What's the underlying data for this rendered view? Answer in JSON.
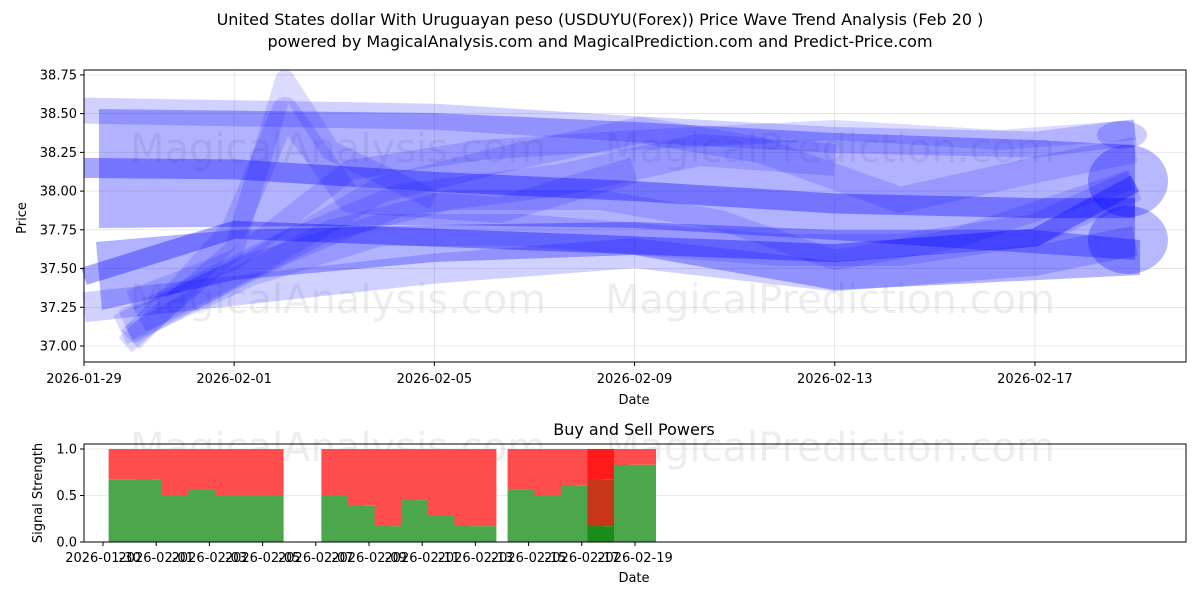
{
  "header": {
    "title": "United States dollar With Uruguayan peso (USDUYU(Forex)) Price Wave Trend Analysis (Feb 20 )",
    "subtitle": "powered by MagicalAnalysis.com and MagicalPrediction.com and Predict-Price.com"
  },
  "watermarks": {
    "left": "MagicalAnalysis.com",
    "right": "MagicalPrediction.com"
  },
  "colors": {
    "band": "#0000ff",
    "buy": "#4ca64c",
    "sell": "#ff4c4c",
    "buy_strong": "#1a8c1a",
    "sell_strong": "#ff1a1a",
    "mixed": "#c8361a"
  },
  "chart_data": [
    {
      "type": "area",
      "title": "United States dollar With Uruguayan peso (USDUYU(Forex)) Price Wave Trend Analysis (Feb 20 )",
      "xlabel": "Date",
      "ylabel": "Price",
      "ylim": [
        36.88,
        38.78
      ],
      "yticks": [
        "37.00",
        "37.25",
        "37.50",
        "37.75",
        "38.00",
        "38.25",
        "38.50",
        "38.75"
      ],
      "xticks": [
        "2026-01-29",
        "2026-02-01",
        "2026-02-05",
        "2026-02-09",
        "2026-02-13",
        "2026-02-17"
      ],
      "grid": true,
      "series": [
        {
          "name": "upper-band",
          "x": [
            "2026-01-29",
            "2026-02-05",
            "2026-02-09",
            "2026-02-13",
            "2026-02-17",
            "2026-02-19"
          ],
          "values": [
            38.52,
            38.48,
            38.4,
            38.33,
            38.3,
            38.38
          ]
        },
        {
          "name": "center-upper",
          "x": [
            "2026-01-29",
            "2026-02-01",
            "2026-02-05",
            "2026-02-09",
            "2026-02-13",
            "2026-02-17",
            "2026-02-19"
          ],
          "values": [
            38.15,
            38.14,
            38.06,
            38.0,
            37.92,
            37.89,
            37.89
          ]
        },
        {
          "name": "center-lower",
          "x": [
            "2026-01-29",
            "2026-02-01",
            "2026-02-05",
            "2026-02-09",
            "2026-02-13",
            "2026-02-17",
            "2026-02-19"
          ],
          "values": [
            37.45,
            37.75,
            37.7,
            37.65,
            37.6,
            37.7,
            38.05
          ]
        },
        {
          "name": "lower-band",
          "x": [
            "2026-01-29",
            "2026-02-05",
            "2026-02-09",
            "2026-02-13",
            "2026-02-17",
            "2026-02-19"
          ],
          "values": [
            37.25,
            37.5,
            37.6,
            37.45,
            37.55,
            37.68
          ]
        },
        {
          "name": "rising-wave",
          "x": [
            "2026-01-30",
            "2026-02-01",
            "2026-02-02",
            "2026-02-05"
          ],
          "values": [
            37.0,
            37.5,
            38.7,
            37.8
          ]
        }
      ]
    },
    {
      "type": "bar",
      "title": "Buy and Sell Powers",
      "xlabel": "Date",
      "ylabel": "Signal Strength",
      "ylim": [
        0,
        1.05
      ],
      "yticks": [
        "0.0",
        "0.5",
        "1.0"
      ],
      "xticks": [
        "2026-01-30",
        "2026-02-01",
        "2026-02-03",
        "2026-02-05",
        "2026-02-07",
        "2026-02-09",
        "2026-02-11",
        "2026-02-13",
        "2026-02-15",
        "2026-02-17",
        "2026-02-19"
      ],
      "stacked": true,
      "categories": [
        "2026-01-31",
        "2026-02-01",
        "2026-02-02",
        "2026-02-03",
        "2026-02-04",
        "2026-02-05",
        "2026-02-08",
        "2026-02-09",
        "2026-02-10",
        "2026-02-11",
        "2026-02-12",
        "2026-02-13",
        "2026-02-15",
        "2026-02-16",
        "2026-02-17",
        "2026-02-18",
        "2026-02-19"
      ],
      "series": [
        {
          "name": "Buy",
          "values": [
            0.67,
            0.67,
            0.5,
            0.56,
            0.5,
            0.5,
            0.5,
            0.39,
            0.17,
            0.45,
            0.28,
            0.17,
            0.56,
            0.5,
            0.61,
            0.17,
            0.83
          ]
        },
        {
          "name": "Sell",
          "values": [
            0.33,
            0.33,
            0.5,
            0.44,
            0.5,
            0.5,
            0.5,
            0.61,
            0.83,
            0.55,
            0.72,
            0.83,
            0.44,
            0.5,
            0.39,
            0.83,
            0.17
          ]
        }
      ],
      "annotations": [
        "2026-02-18 bar has overlapping mixed segment 0.17-0.67 (dark red) with strong sell top 0.67-1.0"
      ]
    }
  ]
}
